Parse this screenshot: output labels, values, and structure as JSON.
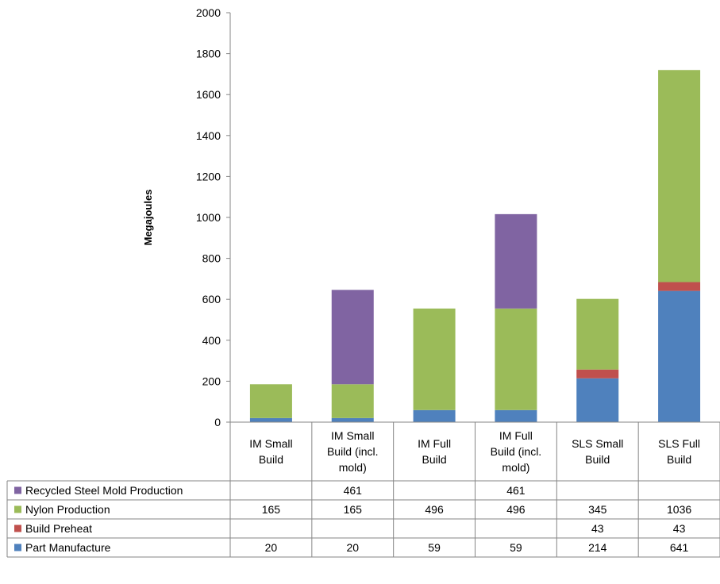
{
  "chart_data": {
    "type": "bar",
    "stacked": true,
    "ylabel": "Megajoules",
    "ylim": [
      0,
      2000
    ],
    "yticks": [
      0,
      200,
      400,
      600,
      800,
      1000,
      1200,
      1400,
      1600,
      1800,
      2000
    ],
    "grid": false,
    "legend": "data-table-below",
    "categories": [
      [
        "IM Small",
        "Build"
      ],
      [
        "IM Small",
        "Build (incl.",
        "mold)"
      ],
      [
        "IM Full",
        "Build"
      ],
      [
        "IM Full",
        "Build (incl.",
        "mold)"
      ],
      [
        "SLS Small",
        "Build"
      ],
      [
        "SLS Full",
        "Build"
      ]
    ],
    "series": [
      {
        "name": "Part Manufacture",
        "color": "#4f81bd",
        "values": [
          20,
          20,
          59,
          59,
          214,
          641
        ]
      },
      {
        "name": "Build Preheat",
        "color": "#c0504d",
        "values": [
          null,
          null,
          null,
          null,
          43,
          43
        ]
      },
      {
        "name": "Nylon Production",
        "color": "#9bbb59",
        "values": [
          165,
          165,
          496,
          496,
          345,
          1036
        ]
      },
      {
        "name": "Recycled Steel Mold Production",
        "color": "#8064a2",
        "values": [
          null,
          461,
          null,
          461,
          null,
          null
        ]
      }
    ],
    "table_row_order": [
      "Recycled Steel Mold Production",
      "Nylon Production",
      "Build Preheat",
      "Part Manufacture"
    ]
  }
}
